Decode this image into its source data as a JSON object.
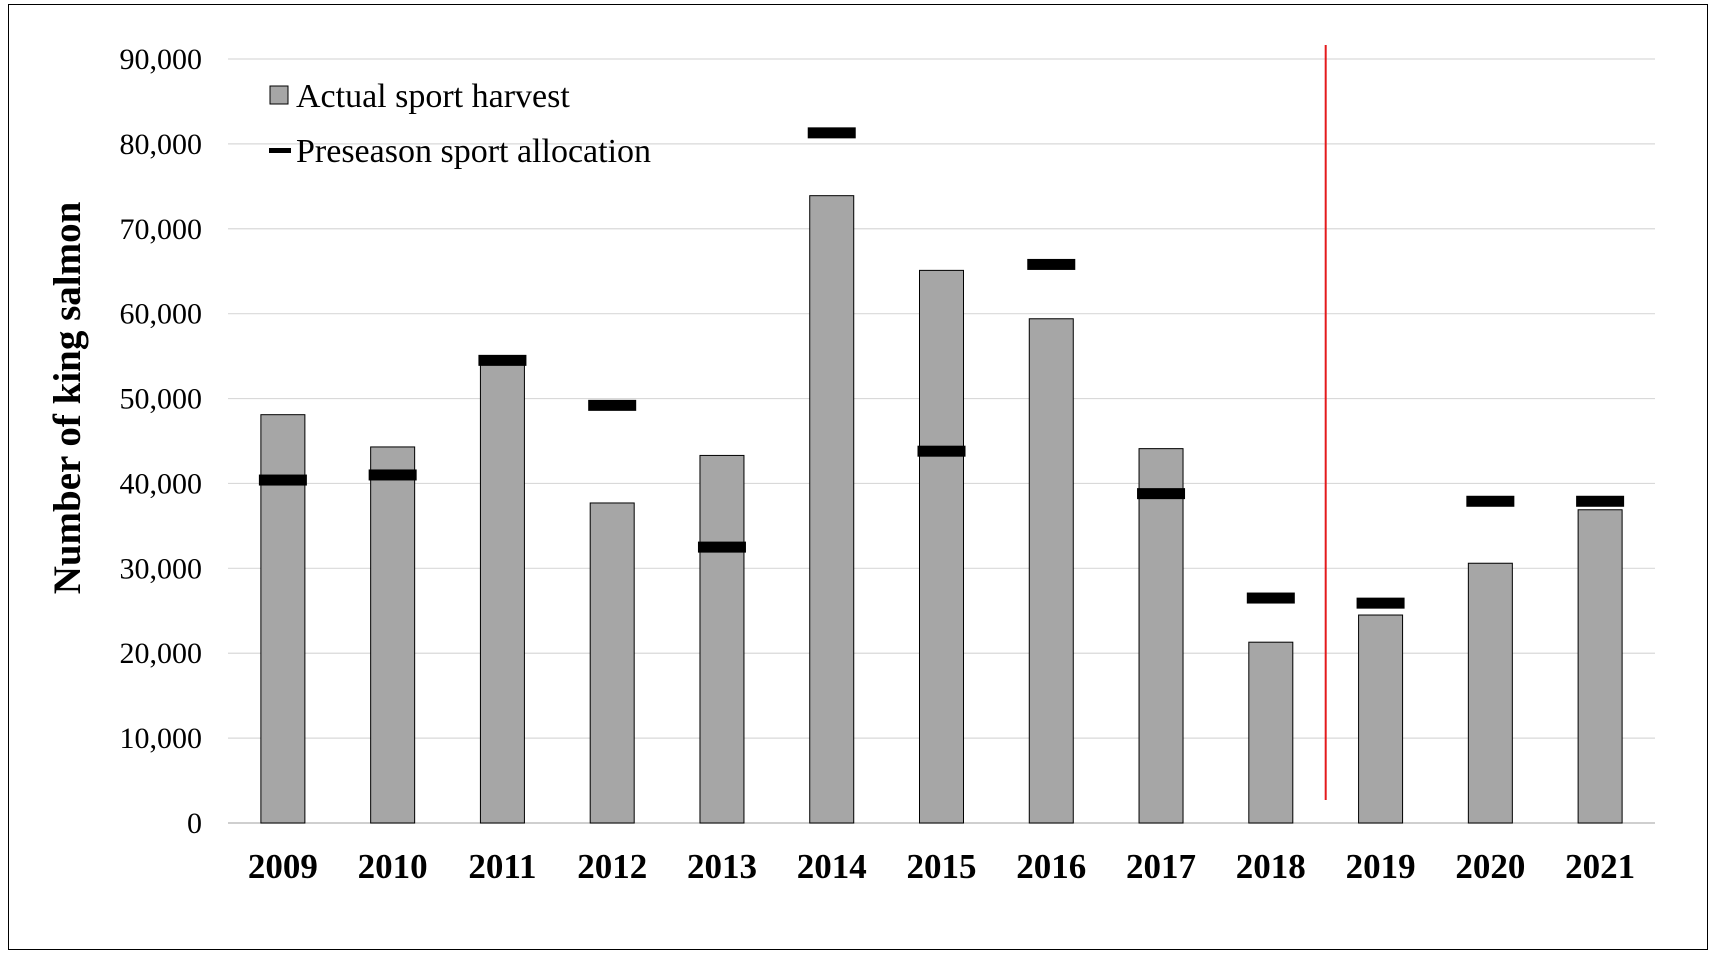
{
  "chart_data": {
    "type": "bar",
    "title": "",
    "xlabel": "",
    "ylabel": "Number of king salmon",
    "categories": [
      "2009",
      "2010",
      "2011",
      "2012",
      "2013",
      "2014",
      "2015",
      "2016",
      "2017",
      "2018",
      "2019",
      "2020",
      "2021"
    ],
    "series": [
      {
        "name": "Actual sport harvest",
        "type": "bar",
        "color": "#a6a6a6",
        "values": [
          48100,
          44300,
          54300,
          37700,
          43300,
          73900,
          65100,
          59400,
          44100,
          21300,
          24500,
          30600,
          36900
        ]
      },
      {
        "name": "Preseason sport allocation",
        "type": "marker",
        "color": "#000000",
        "values": [
          40400,
          41000,
          54500,
          49200,
          32500,
          81300,
          43800,
          65800,
          38800,
          26500,
          25900,
          37900,
          37900
        ]
      }
    ],
    "ylim": [
      0,
      90000
    ],
    "yticks": [
      "0",
      "10,000",
      "20,000",
      "30,000",
      "40,000",
      "50,000",
      "60,000",
      "70,000",
      "80,000",
      "90,000"
    ],
    "grid": true,
    "legend_position": "top-left",
    "divider_between": [
      "2018",
      "2019"
    ],
    "divider_color": "#e41a1c"
  }
}
